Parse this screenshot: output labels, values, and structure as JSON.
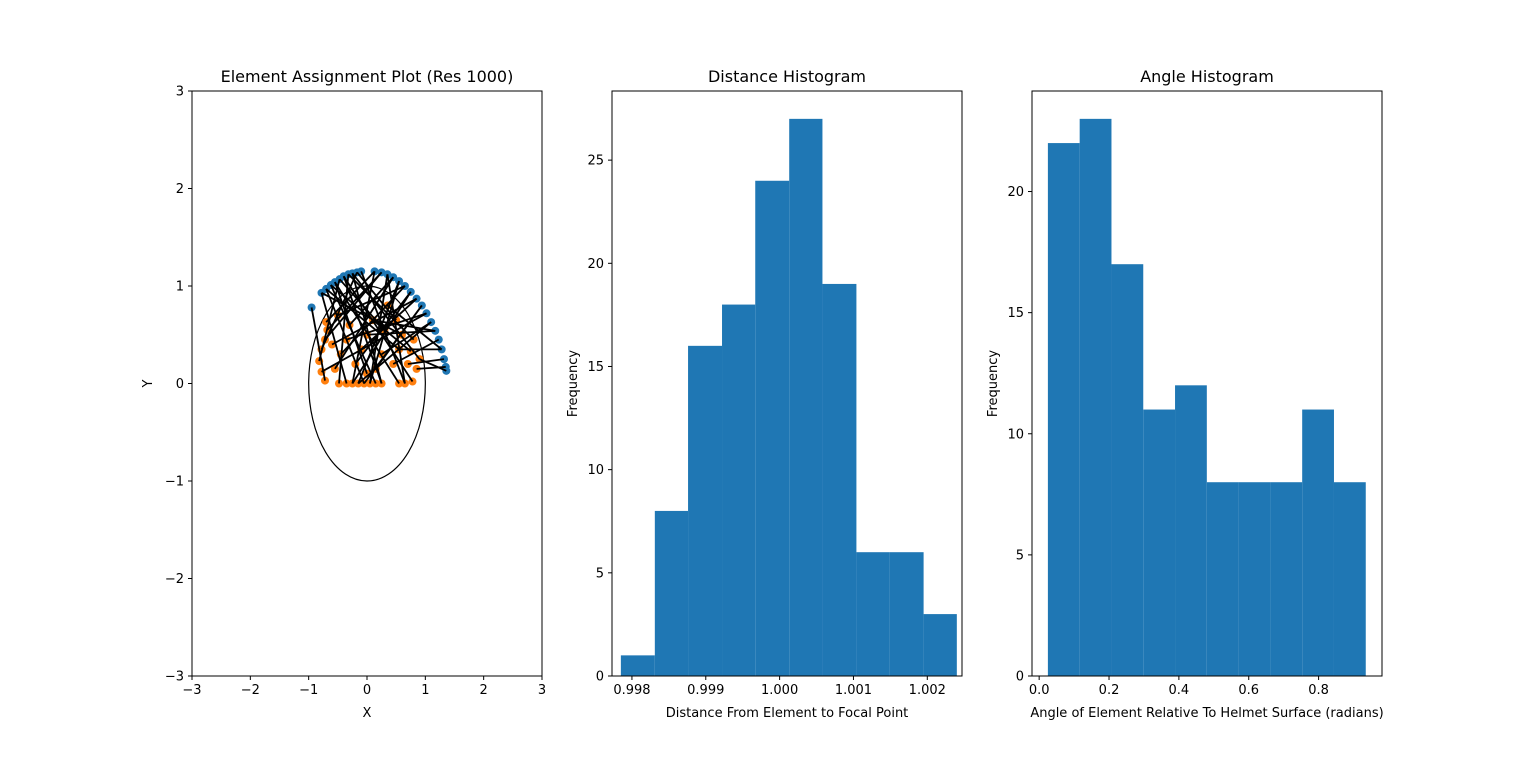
{
  "chart_data": [
    {
      "type": "scatter",
      "title": "Element Assignment Plot (Res 1000)",
      "xlabel": "X",
      "ylabel": "Y",
      "xlim": [
        -3,
        3
      ],
      "ylim": [
        -3,
        3
      ],
      "xticks": [
        "−3",
        "−2",
        "−1",
        "0",
        "1",
        "2",
        "3"
      ],
      "yticks": [
        "−3",
        "−2",
        "−1",
        "0",
        "1",
        "2",
        "3"
      ],
      "ellipse": {
        "cx": 0,
        "cy": 0,
        "rx": 1,
        "ry": 1
      },
      "colors": {
        "helmet_points": "#1f77b4",
        "head_points": "#ff7f0e",
        "lines": "#000000",
        "ellipse": "#000000"
      },
      "helmet_points": [
        [
          -0.95,
          0.78
        ],
        [
          -0.78,
          0.93
        ],
        [
          -0.7,
          0.97
        ],
        [
          -0.62,
          1.01
        ],
        [
          -0.55,
          1.04
        ],
        [
          -0.47,
          1.07
        ],
        [
          -0.4,
          1.1
        ],
        [
          -0.32,
          1.12
        ],
        [
          -0.25,
          1.13
        ],
        [
          -0.17,
          1.14
        ],
        [
          -0.1,
          1.15
        ],
        [
          0.13,
          1.15
        ],
        [
          0.25,
          1.14
        ],
        [
          0.35,
          1.12
        ],
        [
          0.45,
          1.09
        ],
        [
          0.55,
          1.05
        ],
        [
          0.65,
          1.0
        ],
        [
          0.75,
          0.94
        ],
        [
          0.85,
          0.87
        ],
        [
          0.94,
          0.8
        ],
        [
          1.02,
          0.72
        ],
        [
          1.1,
          0.63
        ],
        [
          1.17,
          0.54
        ],
        [
          1.23,
          0.45
        ],
        [
          1.28,
          0.35
        ],
        [
          1.32,
          0.25
        ],
        [
          1.35,
          0.17
        ],
        [
          1.36,
          0.13
        ]
      ],
      "head_points": [
        [
          -0.72,
          0.03
        ],
        [
          -0.48,
          0.0
        ],
        [
          -0.35,
          0.0
        ],
        [
          -0.25,
          0.0
        ],
        [
          -0.15,
          0.0
        ],
        [
          -0.05,
          0.0
        ],
        [
          0.05,
          0.0
        ],
        [
          0.15,
          0.0
        ],
        [
          0.25,
          0.0
        ],
        [
          0.55,
          0.0
        ],
        [
          0.65,
          0.0
        ],
        [
          0.78,
          0.02
        ],
        [
          -0.78,
          0.12
        ],
        [
          -0.82,
          0.23
        ],
        [
          -0.78,
          0.35
        ],
        [
          -0.72,
          0.45
        ],
        [
          -0.68,
          0.55
        ],
        [
          -0.7,
          0.63
        ],
        [
          -0.55,
          0.15
        ],
        [
          -0.45,
          0.3
        ],
        [
          -0.35,
          0.45
        ],
        [
          -0.3,
          0.6
        ],
        [
          -0.2,
          0.2
        ],
        [
          -0.1,
          0.35
        ],
        [
          0.0,
          0.5
        ],
        [
          0.1,
          0.65
        ],
        [
          0.15,
          0.15
        ],
        [
          0.25,
          0.3
        ],
        [
          0.3,
          0.55
        ],
        [
          0.45,
          0.2
        ],
        [
          0.55,
          0.35
        ],
        [
          0.6,
          0.5
        ],
        [
          0.7,
          0.2
        ],
        [
          0.75,
          0.33
        ],
        [
          0.85,
          0.15
        ],
        [
          0.9,
          0.25
        ],
        [
          0.8,
          0.45
        ],
        [
          0.5,
          0.65
        ],
        [
          0.35,
          0.8
        ],
        [
          -0.5,
          0.7
        ],
        [
          -0.6,
          0.4
        ],
        [
          0.0,
          0.1
        ]
      ],
      "connections": [
        [
          -0.95,
          0.78,
          -0.72,
          0.03
        ],
        [
          -0.78,
          0.93,
          -0.35,
          0.0
        ],
        [
          -0.7,
          0.97,
          -0.05,
          0.0
        ],
        [
          -0.62,
          1.01,
          0.15,
          0.0
        ],
        [
          -0.55,
          1.04,
          0.55,
          0.0
        ],
        [
          -0.47,
          1.07,
          -0.82,
          0.23
        ],
        [
          -0.4,
          1.1,
          0.78,
          0.02
        ],
        [
          -0.32,
          1.12,
          -0.48,
          0.0
        ],
        [
          -0.25,
          1.13,
          0.25,
          0.0
        ],
        [
          -0.17,
          1.14,
          -0.78,
          0.35
        ],
        [
          -0.1,
          1.15,
          0.65,
          0.0
        ],
        [
          0.13,
          1.15,
          -0.25,
          0.0
        ],
        [
          0.25,
          1.14,
          -0.72,
          0.45
        ],
        [
          0.35,
          1.12,
          0.05,
          0.0
        ],
        [
          0.45,
          1.09,
          -0.55,
          0.15
        ],
        [
          0.55,
          1.05,
          -0.15,
          0.0
        ],
        [
          0.65,
          1.0,
          -0.45,
          0.3
        ],
        [
          0.75,
          0.94,
          -0.2,
          0.2
        ],
        [
          0.85,
          0.87,
          -0.1,
          0.35
        ],
        [
          0.94,
          0.8,
          0.15,
          0.15
        ],
        [
          1.02,
          0.72,
          -0.35,
          0.45
        ],
        [
          1.1,
          0.63,
          0.25,
          0.3
        ],
        [
          1.17,
          0.54,
          0.0,
          0.5
        ],
        [
          1.23,
          0.45,
          0.45,
          0.2
        ],
        [
          1.28,
          0.35,
          0.55,
          0.35
        ],
        [
          1.32,
          0.25,
          0.7,
          0.2
        ],
        [
          1.35,
          0.17,
          0.85,
          0.15
        ],
        [
          1.36,
          0.13,
          0.9,
          0.25
        ],
        [
          -0.78,
          0.93,
          0.6,
          0.5
        ],
        [
          -0.62,
          1.01,
          0.75,
          0.33
        ],
        [
          -0.47,
          1.07,
          0.3,
          0.55
        ],
        [
          -0.32,
          1.12,
          0.8,
          0.45
        ],
        [
          -0.17,
          1.14,
          0.5,
          0.65
        ],
        [
          0.25,
          1.14,
          -0.68,
          0.55
        ],
        [
          0.45,
          1.09,
          -0.3,
          0.6
        ],
        [
          0.65,
          1.0,
          -0.5,
          0.7
        ],
        [
          0.85,
          0.87,
          -0.6,
          0.4
        ],
        [
          1.02,
          0.72,
          -0.78,
          0.12
        ],
        [
          1.17,
          0.54,
          0.1,
          0.65
        ],
        [
          1.28,
          0.35,
          0.35,
          0.8
        ],
        [
          -0.55,
          1.04,
          0.0,
          0.1
        ],
        [
          0.13,
          1.15,
          -0.7,
          0.63
        ],
        [
          -0.4,
          1.1,
          0.25,
          0.0
        ],
        [
          0.35,
          1.12,
          0.65,
          0.0
        ],
        [
          0.94,
          0.8,
          -0.05,
          0.0
        ],
        [
          1.1,
          0.63,
          -0.15,
          0.0
        ],
        [
          -0.7,
          0.97,
          0.55,
          0.35
        ],
        [
          -0.25,
          1.13,
          0.9,
          0.25
        ],
        [
          0.55,
          1.05,
          0.05,
          0.0
        ],
        [
          0.75,
          0.94,
          -0.25,
          0.0
        ]
      ]
    },
    {
      "type": "bar",
      "title": "Distance Histogram",
      "xlabel": "Distance From Element to Focal Point",
      "ylabel": "Frequency",
      "xlim": [
        0.99773,
        1.00247
      ],
      "ylim": [
        0,
        28.35
      ],
      "xticks": [
        {
          "value": 0.998,
          "label": "0.998"
        },
        {
          "value": 0.999,
          "label": "0.999"
        },
        {
          "value": 1.0,
          "label": "1.000"
        },
        {
          "value": 1.001,
          "label": "1.001"
        },
        {
          "value": 1.002,
          "label": "1.002"
        }
      ],
      "yticks": [
        {
          "value": 0,
          "label": "0"
        },
        {
          "value": 5,
          "label": "5"
        },
        {
          "value": 10,
          "label": "10"
        },
        {
          "value": 15,
          "label": "15"
        },
        {
          "value": 20,
          "label": "20"
        },
        {
          "value": 25,
          "label": "25"
        }
      ],
      "bin_edges": [
        0.99785,
        0.99831,
        0.99876,
        0.99922,
        0.99967,
        1.00013,
        1.00058,
        1.00104,
        1.00149,
        1.00195,
        1.0024
      ],
      "values": [
        1,
        8,
        16,
        18,
        24,
        27,
        19,
        6,
        6,
        3
      ],
      "color": "#1f77b4"
    },
    {
      "type": "bar",
      "title": "Angle Histogram",
      "xlabel": "Angle of Element Relative To Helmet Surface (radians)",
      "ylabel": "Frequency",
      "xlim": [
        -0.0205,
        0.9815
      ],
      "ylim": [
        0,
        24.15
      ],
      "xticks": [
        {
          "value": 0.0,
          "label": "0.0"
        },
        {
          "value": 0.2,
          "label": "0.2"
        },
        {
          "value": 0.4,
          "label": "0.4"
        },
        {
          "value": 0.6,
          "label": "0.6"
        },
        {
          "value": 0.8,
          "label": "0.8"
        }
      ],
      "yticks": [
        {
          "value": 0,
          "label": "0"
        },
        {
          "value": 5,
          "label": "5"
        },
        {
          "value": 10,
          "label": "10"
        },
        {
          "value": 15,
          "label": "15"
        },
        {
          "value": 20,
          "label": "20"
        }
      ],
      "bin_edges": [
        0.025,
        0.116,
        0.207,
        0.298,
        0.389,
        0.48,
        0.571,
        0.662,
        0.753,
        0.844,
        0.935
      ],
      "values": [
        22,
        23,
        17,
        11,
        12,
        8,
        8,
        8,
        11,
        8
      ],
      "color": "#1f77b4"
    }
  ]
}
